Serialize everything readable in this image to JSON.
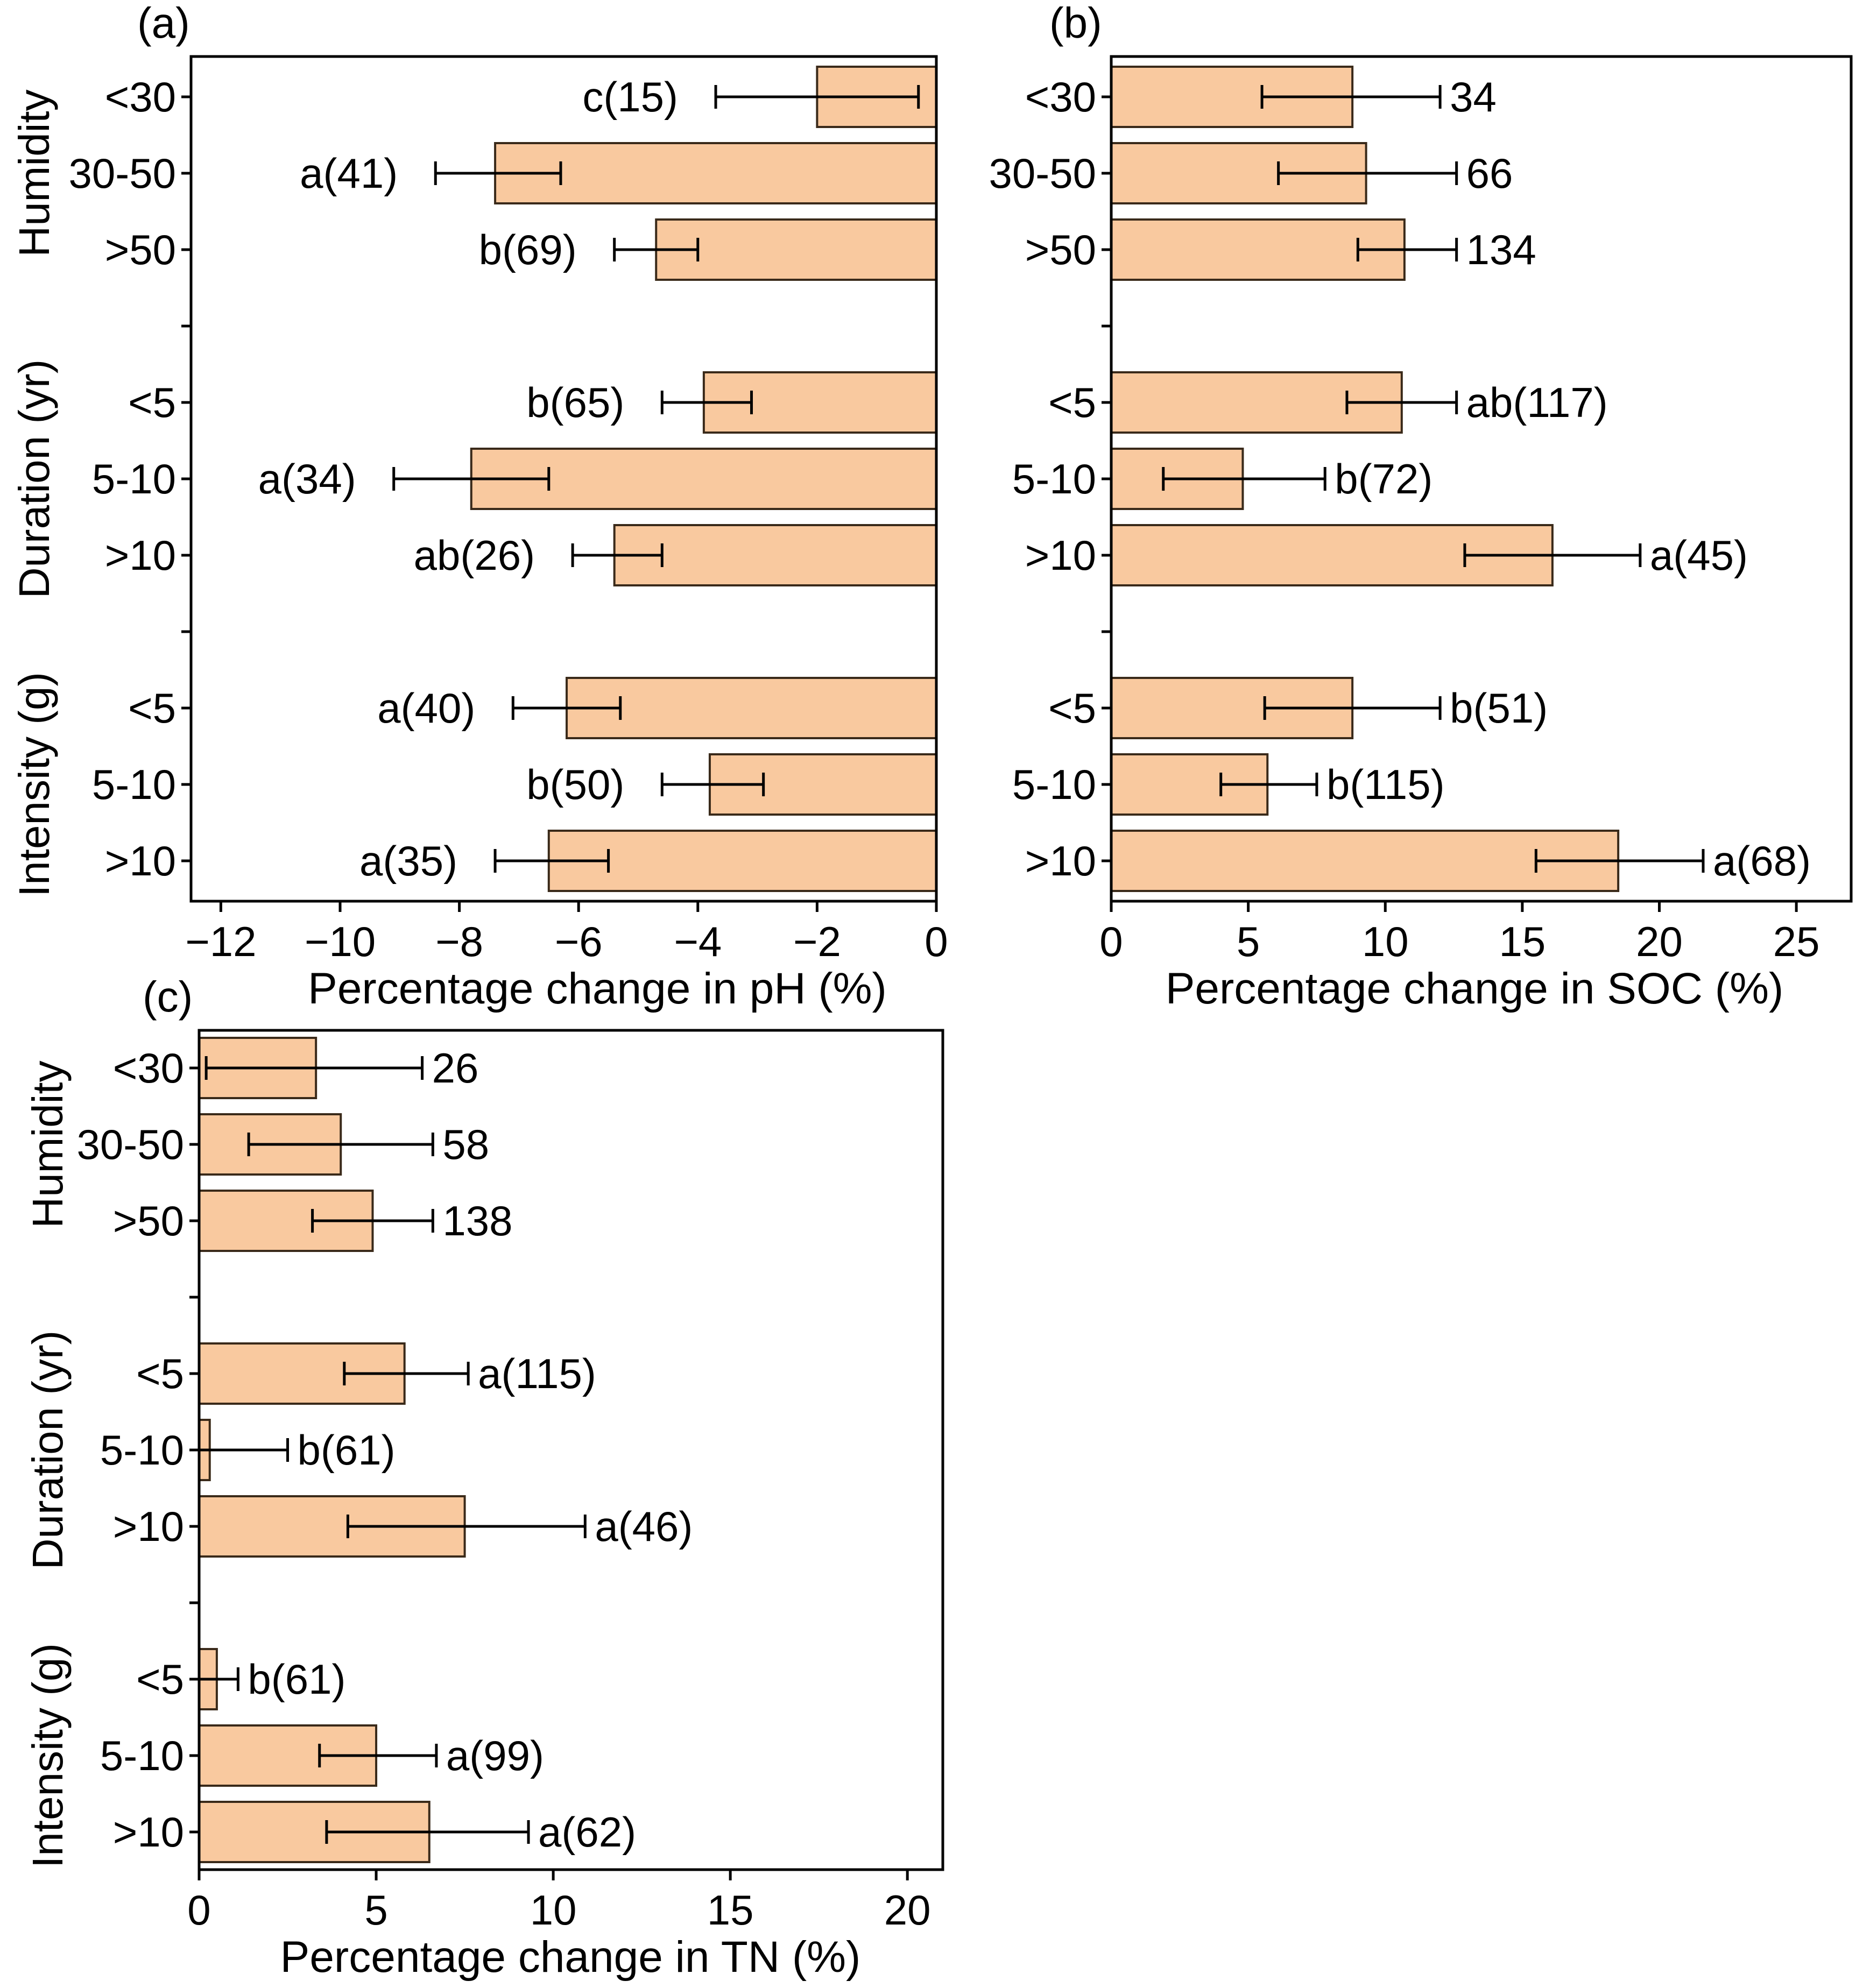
{
  "chart_data": [
    {
      "panel": "(a)",
      "type": "bar",
      "orientation": "horizontal",
      "xlabel": "Percentage change in pH (%)",
      "xlim": [
        -12.5,
        0
      ],
      "xticks": [
        -12,
        -10,
        -8,
        -6,
        -4,
        -2,
        0
      ],
      "groups": [
        {
          "name": "Humidity",
          "categories": [
            "<30",
            "30-50",
            ">50"
          ]
        },
        {
          "name": "Duration (yr)",
          "categories": [
            "<5",
            "5-10",
            ">10"
          ]
        },
        {
          "name": "Intensity (g)",
          "categories": [
            "<5",
            "5-10",
            ">10"
          ]
        }
      ],
      "values": [
        -2.0,
        -7.4,
        -4.7,
        -3.9,
        -7.8,
        -5.4,
        -6.2,
        -3.8,
        -6.5
      ],
      "err_low": [
        -3.7,
        -8.4,
        -5.4,
        -4.6,
        -9.1,
        -6.1,
        -7.1,
        -4.6,
        -7.4
      ],
      "err_high": [
        -0.3,
        -6.3,
        -4.0,
        -3.1,
        -6.5,
        -4.6,
        -5.3,
        -2.9,
        -5.5
      ],
      "labels": [
        "c(15)",
        "a(41)",
        "b(69)",
        "b(65)",
        "a(34)",
        "ab(26)",
        "a(40)",
        "b(50)",
        "a(35)"
      ]
    },
    {
      "panel": "(b)",
      "type": "bar",
      "orientation": "horizontal",
      "xlabel": "Percentage change in SOC (%)",
      "xlim": [
        0,
        27
      ],
      "xticks": [
        0,
        5,
        10,
        15,
        20,
        25
      ],
      "groups": [
        {
          "name": "",
          "categories": [
            "<30",
            "30-50",
            ">50"
          ]
        },
        {
          "name": "",
          "categories": [
            "<5",
            "5-10",
            ">10"
          ]
        },
        {
          "name": "",
          "categories": [
            "<5",
            "5-10",
            ">10"
          ]
        }
      ],
      "values": [
        8.8,
        9.3,
        10.7,
        10.6,
        4.8,
        16.1,
        8.8,
        5.7,
        18.5
      ],
      "err_low": [
        5.5,
        6.1,
        9.0,
        8.6,
        1.9,
        12.9,
        5.6,
        4.0,
        15.5
      ],
      "err_high": [
        12.0,
        12.6,
        12.6,
        12.6,
        7.8,
        19.3,
        12.0,
        7.5,
        21.6
      ],
      "labels": [
        "34",
        "66",
        "134",
        "ab(117)",
        "b(72)",
        "a(45)",
        "b(51)",
        "b(115)",
        "a(68)"
      ]
    },
    {
      "panel": "(c)",
      "type": "bar",
      "orientation": "horizontal",
      "xlabel": "Percentage change in TN (%)",
      "xlim": [
        0,
        21
      ],
      "xticks": [
        0,
        5,
        10,
        15,
        20
      ],
      "groups": [
        {
          "name": "Humidity",
          "categories": [
            "<30",
            "30-50",
            ">50"
          ]
        },
        {
          "name": "Duration (yr)",
          "categories": [
            "<5",
            "5-10",
            ">10"
          ]
        },
        {
          "name": "Intensity (g)",
          "categories": [
            "<5",
            "5-10",
            ">10"
          ]
        }
      ],
      "values": [
        3.3,
        4.0,
        4.9,
        5.8,
        0.3,
        7.5,
        0.5,
        5.0,
        6.5
      ],
      "err_low": [
        0.2,
        1.4,
        3.2,
        4.1,
        0.0,
        4.2,
        0.0,
        3.4,
        3.6
      ],
      "err_high": [
        6.3,
        6.6,
        6.6,
        7.6,
        2.5,
        10.9,
        1.1,
        6.7,
        9.3
      ],
      "labels": [
        "26",
        "58",
        "138",
        "a(115)",
        "b(61)",
        "a(46)",
        "b(61)",
        "a(99)",
        "a(62)"
      ]
    }
  ],
  "style": {
    "bar_fill": "#f9c99f",
    "bar_stroke": "#3a2a1a",
    "axis_color": "#000000"
  }
}
